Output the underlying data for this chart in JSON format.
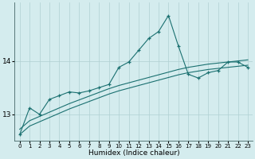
{
  "xlabel": "Humidex (Indice chaleur)",
  "bg_color": "#d4ecee",
  "grid_color": "#b0d0d2",
  "line_color": "#1a7070",
  "x_values": [
    0,
    1,
    2,
    3,
    4,
    5,
    6,
    7,
    8,
    9,
    10,
    11,
    12,
    13,
    14,
    15,
    16,
    17,
    18,
    19,
    20,
    21,
    22,
    23
  ],
  "y_main": [
    12.62,
    13.12,
    13.0,
    13.28,
    13.35,
    13.42,
    13.4,
    13.44,
    13.5,
    13.56,
    13.88,
    13.98,
    14.2,
    14.42,
    14.55,
    14.85,
    14.28,
    13.75,
    13.68,
    13.78,
    13.82,
    13.98,
    13.98,
    13.88
  ],
  "y_line1": [
    12.72,
    12.88,
    12.96,
    13.04,
    13.12,
    13.2,
    13.27,
    13.34,
    13.41,
    13.48,
    13.54,
    13.59,
    13.64,
    13.69,
    13.74,
    13.79,
    13.84,
    13.88,
    13.91,
    13.94,
    13.96,
    13.98,
    14.0,
    14.02
  ],
  "y_line2": [
    12.62,
    12.78,
    12.86,
    12.94,
    13.02,
    13.1,
    13.17,
    13.24,
    13.31,
    13.38,
    13.44,
    13.49,
    13.54,
    13.59,
    13.64,
    13.69,
    13.74,
    13.78,
    13.81,
    13.84,
    13.86,
    13.88,
    13.9,
    13.92
  ],
  "ylim": [
    12.5,
    15.1
  ],
  "yticks": [
    13,
    14
  ],
  "figsize": [
    3.2,
    2.0
  ],
  "dpi": 100
}
